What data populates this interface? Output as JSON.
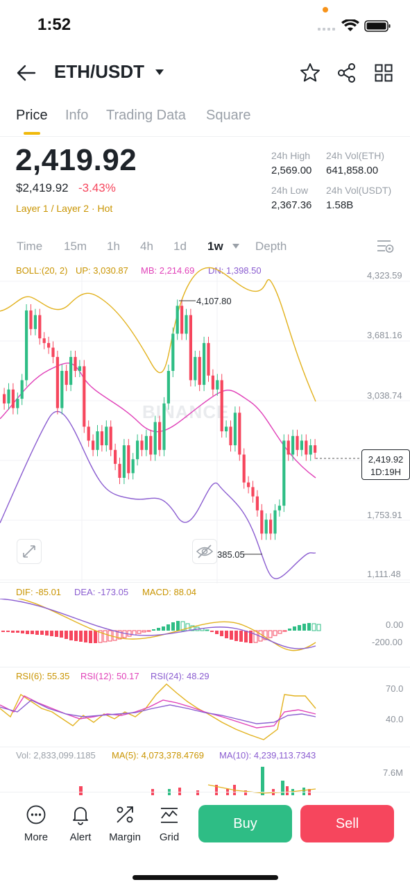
{
  "status": {
    "time": "1:52"
  },
  "header": {
    "pair": "ETH/USDT"
  },
  "tabs": [
    {
      "label": "Price"
    },
    {
      "label": "Info"
    },
    {
      "label": "Trading Data"
    },
    {
      "label": "Square"
    }
  ],
  "ticker": {
    "last_price": "2,419.92",
    "fiat_price": "$2,419.92",
    "change_pct": "-3.43%",
    "tags": "Layer 1 / Layer 2 · Hot",
    "stats": {
      "high_label": "24h High",
      "high_value": "2,569.00",
      "vol_eth_label": "24h Vol(ETH)",
      "vol_eth_value": "641,858.00",
      "low_label": "24h Low",
      "low_value": "2,367.36",
      "vol_usdt_label": "24h Vol(USDT)",
      "vol_usdt_value": "1.58B"
    }
  },
  "intervals": [
    {
      "label": "Time"
    },
    {
      "label": "15m"
    },
    {
      "label": "1h"
    },
    {
      "label": "4h"
    },
    {
      "label": "1d"
    },
    {
      "label": "1w"
    },
    {
      "label": "Depth"
    }
  ],
  "colors": {
    "up": "#2ebd85",
    "down": "#f6465d",
    "accent": "#f0b90b",
    "boll_up": "#e2b11c",
    "boll_mb": "#e040b8",
    "boll_dn": "#8a5cd0"
  },
  "boll": {
    "name": "BOLL:(20, 2)",
    "up": "UP: 3,030.87",
    "mb": "MB: 2,214.69",
    "dn": "DN: 1,398.50"
  },
  "price_axis": [
    "4,323.59",
    "3,681.16",
    "3,038.74",
    "1,753.91",
    "1,111.48"
  ],
  "chart_annotations": {
    "high_mark": "4,107.80",
    "low_mark": "385.05",
    "current_price": "2,419.92",
    "countdown": "1D:19H"
  },
  "watermark": "BINANCE",
  "macd": {
    "dif": "DIF: -85.01",
    "dea": "DEA: -173.05",
    "macd": "MACD: 88.04",
    "axis": [
      "0.00",
      "-200.00"
    ]
  },
  "rsi": {
    "rsi6": "RSI(6): 55.35",
    "rsi12": "RSI(12): 50.17",
    "rsi24": "RSI(24): 48.29",
    "axis": [
      "70.0",
      "40.0"
    ]
  },
  "volume": {
    "vol": "Vol: 2,833,099.1185",
    "ma5": "MA(5): 4,073,378.4769",
    "ma10": "MA(10): 4,239,113.7343",
    "axis": "7.6M"
  },
  "bottom_nav": [
    {
      "label": "More",
      "icon": "more-icon"
    },
    {
      "label": "Alert",
      "icon": "bell-icon"
    },
    {
      "label": "Margin",
      "icon": "margin-icon"
    },
    {
      "label": "Grid",
      "icon": "grid-chart-icon"
    }
  ],
  "actions": {
    "buy": "Buy",
    "sell": "Sell"
  },
  "chart_data": {
    "type": "candlestick",
    "candles": [
      {
        "o": 3050,
        "c": 2950
      },
      {
        "o": 2950,
        "c": 3100
      },
      {
        "o": 3100,
        "c": 2900
      },
      {
        "o": 2900,
        "c": 3000
      },
      {
        "o": 3000,
        "c": 3200
      },
      {
        "o": 3200,
        "c": 3950
      },
      {
        "o": 3950,
        "c": 3750
      },
      {
        "o": 3750,
        "c": 3900
      },
      {
        "o": 3900,
        "c": 3650
      },
      {
        "o": 3650,
        "c": 3600
      },
      {
        "o": 3600,
        "c": 3550
      },
      {
        "o": 3550,
        "c": 3450
      },
      {
        "o": 3450,
        "c": 2900
      },
      {
        "o": 2900,
        "c": 3300
      },
      {
        "o": 3300,
        "c": 3150
      },
      {
        "o": 3150,
        "c": 3450
      },
      {
        "o": 3450,
        "c": 3300
      },
      {
        "o": 3300,
        "c": 3350
      },
      {
        "o": 3350,
        "c": 2700
      },
      {
        "o": 2700,
        "c": 2550
      },
      {
        "o": 2550,
        "c": 2450
      },
      {
        "o": 2450,
        "c": 2650
      },
      {
        "o": 2650,
        "c": 2500
      },
      {
        "o": 2500,
        "c": 2700
      },
      {
        "o": 2700,
        "c": 2450
      },
      {
        "o": 2450,
        "c": 2300
      },
      {
        "o": 2300,
        "c": 2150
      },
      {
        "o": 2150,
        "c": 2500
      },
      {
        "o": 2500,
        "c": 2200
      },
      {
        "o": 2200,
        "c": 2350
      },
      {
        "o": 2350,
        "c": 2550
      },
      {
        "o": 2550,
        "c": 2450
      },
      {
        "o": 2450,
        "c": 2600
      },
      {
        "o": 2600,
        "c": 2400
      },
      {
        "o": 2400,
        "c": 2750
      },
      {
        "o": 2750,
        "c": 2450
      },
      {
        "o": 2450,
        "c": 2950
      },
      {
        "o": 2950,
        "c": 3300
      },
      {
        "o": 3300,
        "c": 3700
      },
      {
        "o": 3700,
        "c": 4000
      },
      {
        "o": 4000,
        "c": 3700
      },
      {
        "o": 3700,
        "c": 3900
      },
      {
        "o": 3900,
        "c": 3200
      },
      {
        "o": 3200,
        "c": 3450
      },
      {
        "o": 3450,
        "c": 3150
      },
      {
        "o": 3150,
        "c": 3600
      },
      {
        "o": 3600,
        "c": 3250
      },
      {
        "o": 3250,
        "c": 3100
      },
      {
        "o": 3100,
        "c": 3200
      },
      {
        "o": 3200,
        "c": 2650
      },
      {
        "o": 2650,
        "c": 2700
      },
      {
        "o": 2700,
        "c": 2500
      },
      {
        "o": 2500,
        "c": 2850
      },
      {
        "o": 2850,
        "c": 2400
      },
      {
        "o": 2400,
        "c": 2100
      },
      {
        "o": 2100,
        "c": 2050
      },
      {
        "o": 2050,
        "c": 1950
      },
      {
        "o": 1950,
        "c": 1800
      },
      {
        "o": 1800,
        "c": 1550
      },
      {
        "o": 1550,
        "c": 1700
      },
      {
        "o": 1700,
        "c": 1550
      },
      {
        "o": 1550,
        "c": 1800
      },
      {
        "o": 1800,
        "c": 1850
      },
      {
        "o": 1850,
        "c": 2550
      },
      {
        "o": 2550,
        "c": 2400
      },
      {
        "o": 2400,
        "c": 2600
      },
      {
        "o": 2600,
        "c": 2450
      },
      {
        "o": 2450,
        "c": 2550
      },
      {
        "o": 2550,
        "c": 2400
      },
      {
        "o": 2400,
        "c": 2500
      },
      {
        "o": 2500,
        "c": 2420
      }
    ],
    "ylim": [
      1111.48,
      4323.59
    ]
  }
}
